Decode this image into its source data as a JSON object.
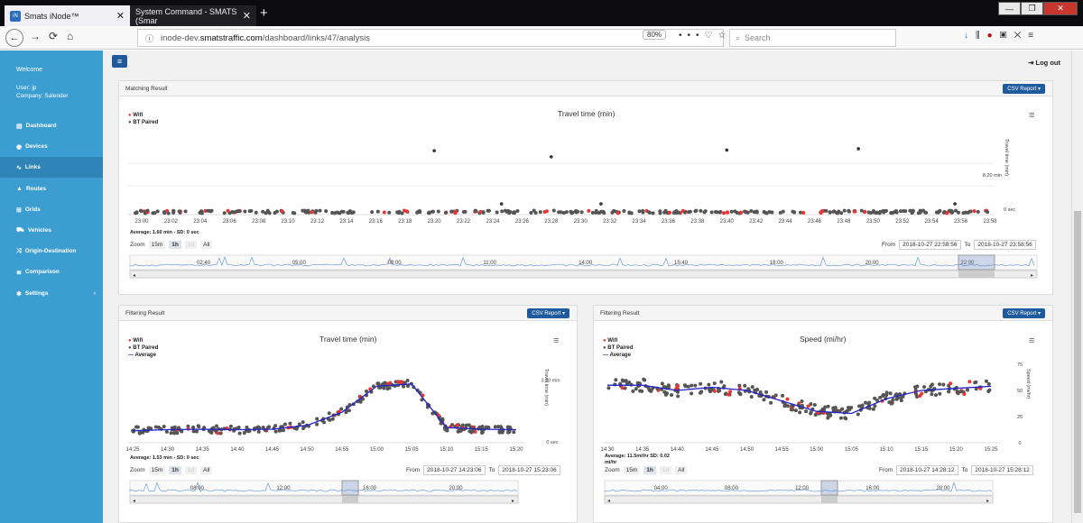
{
  "browser": {
    "tabs": [
      {
        "title": "Smats iNode™",
        "favicon": "iN"
      },
      {
        "title": "System Command - SMATS (Smar"
      }
    ],
    "url_prefix": "inode-dev.",
    "url_domain": "smatstraffic.com",
    "url_path": "/dashboard/links/47/analysis",
    "zoom": "80%",
    "search_placeholder": "Search"
  },
  "sidebar": {
    "welcome": "Welcome",
    "user": "User: jp",
    "company": "Company: Salender",
    "items": [
      {
        "label": "Dashboard",
        "icon": "dashboard-icon"
      },
      {
        "label": "Devices",
        "icon": "wifi-icon"
      },
      {
        "label": "Links",
        "icon": "link-icon"
      },
      {
        "label": "Routes",
        "icon": "road-icon"
      },
      {
        "label": "Grids",
        "icon": "grid-icon"
      },
      {
        "label": "Vehicles",
        "icon": "car-icon"
      },
      {
        "label": "Origin-Destination",
        "icon": "shuffle-icon"
      },
      {
        "label": "Comparison",
        "icon": "list-icon"
      },
      {
        "label": "Settings",
        "icon": "gear-icon"
      }
    ],
    "active": 2
  },
  "header": {
    "logout": "Log out"
  },
  "matching": {
    "panel_title": "Matching Result",
    "csv": "CSV Report ▾",
    "chart_title": "Travel time (min)",
    "legend": [
      "Wifi",
      "BT Paired"
    ],
    "y_label": "Travel time (min)",
    "y_ticks": [
      "8.20 min",
      "0 sec"
    ],
    "stats": "Average: 1.60 min - SD: 0 sec",
    "zoom_label": "Zoom",
    "zoom_buttons": [
      "15m",
      "1h",
      "1d",
      "All"
    ],
    "from_label": "From",
    "from": "2018-10-27 22:58:56",
    "to_label": "To",
    "to": "2018-10-27 23:58:56",
    "nav_ticks": [
      "02:40",
      "05:00",
      "08:00",
      "11:00",
      "14:00",
      "15:40",
      "18:00",
      "20:00",
      "22:00"
    ]
  },
  "filter_tt": {
    "panel_title": "Filtering Result",
    "csv": "CSV Report ▾",
    "chart_title": "Travel time (min)",
    "legend": [
      "Wifi",
      "BT Paired",
      "Average"
    ],
    "y_label": "Travel time (min)",
    "y_ticks": [
      "3.20 min",
      "0 sec"
    ],
    "stats": "Average: 1.53 min - SD: 0 sec",
    "zoom_label": "Zoom",
    "zoom_buttons": [
      "15m",
      "1h",
      "1d",
      "All"
    ],
    "from_label": "From",
    "from": "2018-10-27 14:23:06",
    "to_label": "To",
    "to": "2018-10-27 15:23:06",
    "nav_ticks": [
      "08:00",
      "12:00",
      "16:00",
      "20:00"
    ]
  },
  "filter_speed": {
    "panel_title": "Filtering Result",
    "csv": "CSV Report ▾",
    "chart_title": "Speed (mi/hr)",
    "legend": [
      "Wifi",
      "BT Paired",
      "Average"
    ],
    "y_label": "Speed (mi/hr)",
    "y_ticks": [
      "75",
      "50",
      "25",
      "0"
    ],
    "stats_line1": "Average: 11.5mi/hr SD: 0.02",
    "stats_line2": "mi/hr",
    "zoom_label": "Zoom",
    "zoom_buttons": [
      "15m",
      "1h",
      "1d",
      "All"
    ],
    "from_label": "From",
    "from": "2018-10-27 14:28:12",
    "to_label": "To",
    "to": "2018-10-27 15:28:12",
    "nav_ticks": [
      "04:00",
      "08:00",
      "12:00",
      "16:00",
      "20:00"
    ]
  },
  "chart_data": [
    {
      "type": "scatter",
      "title": "Travel time (min)",
      "ylabel": "Travel time (min)",
      "legend": [
        "Wifi",
        "BT Paired"
      ],
      "categories": [
        "23:00",
        "23:02",
        "23:04",
        "23:06",
        "23:08",
        "23:10",
        "23:12",
        "23:14",
        "23:16",
        "23:18",
        "23:20",
        "23:22",
        "23:24",
        "23:26",
        "23:28",
        "23:30",
        "23:32",
        "23:34",
        "23:36",
        "23:38",
        "23:40",
        "23:42",
        "23:44",
        "23:46",
        "23:48",
        "23:50",
        "23:52",
        "23:54",
        "23:56",
        "23:58"
      ],
      "outliers": [
        {
          "x": 10,
          "y": 9.5
        },
        {
          "x": 14,
          "y": 8.6
        },
        {
          "x": 20,
          "y": 9.6
        },
        {
          "x": 24.5,
          "y": 9.8
        },
        {
          "x": 12.3,
          "y": 1.6
        },
        {
          "x": 15.7,
          "y": 1.6
        },
        {
          "x": 27.8,
          "y": 1.6
        }
      ],
      "baseline_y": 0.4,
      "ylim": [
        0,
        11
      ]
    },
    {
      "type": "line",
      "title": "Travel time (min)",
      "ylabel": "Travel time (min)",
      "legend": [
        "Wifi",
        "BT Paired",
        "Average"
      ],
      "categories": [
        "14:25",
        "14:30",
        "14:35",
        "14:40",
        "14:45",
        "14:50",
        "14:55",
        "15:00",
        "15:05",
        "15:10",
        "15:15",
        "15:20"
      ],
      "average": [
        0.55,
        0.6,
        0.62,
        0.6,
        0.62,
        0.8,
        1.4,
        2.6,
        2.7,
        0.7,
        0.62,
        0.6
      ],
      "ylim": [
        0,
        3.6
      ]
    },
    {
      "type": "line",
      "title": "Speed (mi/hr)",
      "ylabel": "Speed (mi/hr)",
      "legend": [
        "Wifi",
        "BT Paired",
        "Average"
      ],
      "categories": [
        "14:30",
        "14:35",
        "14:40",
        "14:45",
        "14:50",
        "14:55",
        "15:00",
        "15:05",
        "15:10",
        "15:15",
        "15:20",
        "15:25"
      ],
      "average": [
        55,
        55,
        50,
        53,
        50,
        40,
        30,
        28,
        42,
        50,
        52,
        54
      ],
      "ylim": [
        0,
        75
      ]
    }
  ]
}
